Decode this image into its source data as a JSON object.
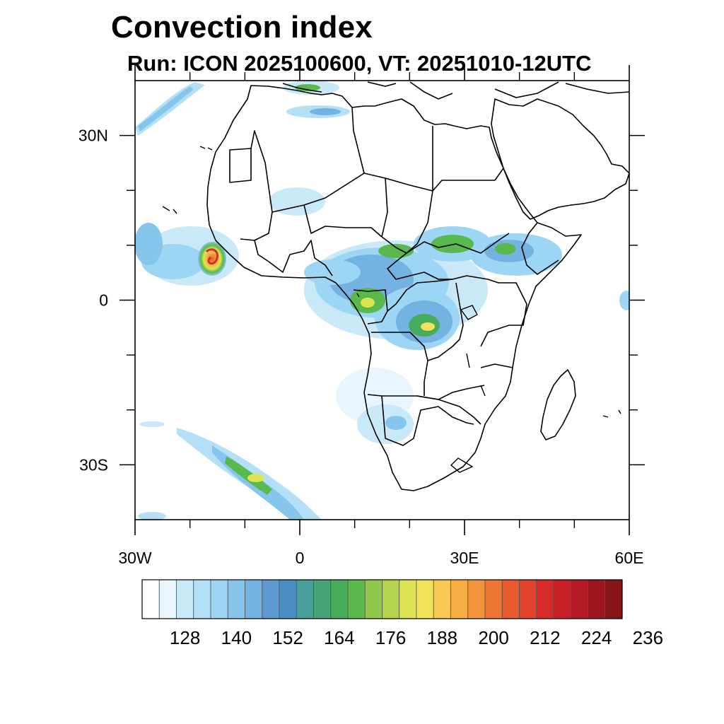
{
  "title": "Convection index",
  "subtitle": "Run: ICON 2025100600,  VT: 20251010-12UTC",
  "map": {
    "lon_range": [
      -30,
      60
    ],
    "lat_range": [
      -40,
      40
    ],
    "x_ticks": [
      {
        "value": -30,
        "label": "30W"
      },
      {
        "value": 0,
        "label": "0"
      },
      {
        "value": 30,
        "label": "30E"
      },
      {
        "value": 60,
        "label": "60E"
      }
    ],
    "y_ticks": [
      {
        "value": 30,
        "label": "30N"
      },
      {
        "value": 0,
        "label": "0"
      },
      {
        "value": -30,
        "label": "30S"
      }
    ],
    "minor_x_ticks": [
      -20,
      -10,
      10,
      20,
      40,
      50
    ],
    "minor_y_ticks": [
      20,
      10,
      -10,
      -20
    ]
  },
  "colorbar": {
    "colors": [
      "#ffffff",
      "#e8f5fc",
      "#c9e8f8",
      "#b4e0f7",
      "#9dd6f4",
      "#86c6ec",
      "#74b2e2",
      "#5d9ad2",
      "#4b8ec4",
      "#479e9a",
      "#46a476",
      "#47ad5a",
      "#5ab94c",
      "#8dc84c",
      "#b4d24c",
      "#dde452",
      "#f2e15a",
      "#f8c954",
      "#f6ae45",
      "#f3933a",
      "#ee7633",
      "#e9592e",
      "#e2432b",
      "#d82b29",
      "#c92027",
      "#b51a25",
      "#9e1720",
      "#851519"
    ],
    "labels": [
      "128",
      "140",
      "152",
      "164",
      "176",
      "188",
      "200",
      "212",
      "224",
      "236"
    ],
    "label_after_box": [
      1,
      4,
      7,
      10,
      13,
      16,
      19,
      22,
      25,
      28
    ]
  },
  "chart_data": {
    "type": "heatmap",
    "title": "Convection index",
    "subtitle": "Run: ICON 2025100600,  VT: 20251010-12UTC",
    "x_range": [
      -30,
      60
    ],
    "y_range": [
      -40,
      40
    ],
    "colorbar_levels": [
      128,
      140,
      152,
      164,
      176,
      188,
      200,
      212,
      224,
      236
    ]
  }
}
